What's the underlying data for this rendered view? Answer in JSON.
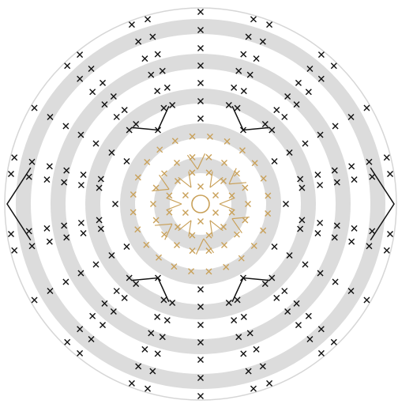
{
  "diagram": {
    "type": "crochet-chart",
    "colors": {
      "background": "#ffffff",
      "band": "#dcdcdc",
      "outline": "#d6d6d6",
      "outer_stitch": "#111111",
      "inner_stitch": "#c9a15a"
    },
    "symbols": {
      "outer": "cross-stitch-icon",
      "inner": "cross-stitch-icon",
      "start": "magic-ring-icon",
      "increase": "v-increase-icon"
    }
  }
}
